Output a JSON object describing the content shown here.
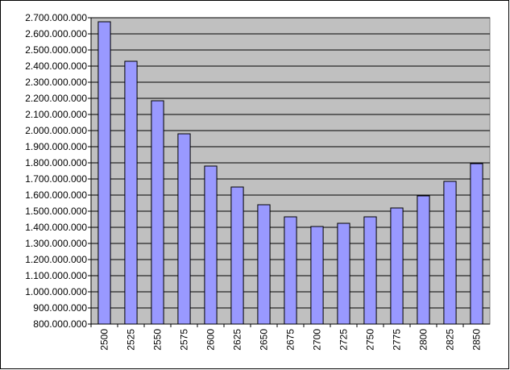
{
  "chart_data": {
    "type": "bar",
    "categories": [
      2500,
      2525,
      2550,
      2575,
      2600,
      2625,
      2650,
      2675,
      2700,
      2725,
      2750,
      2775,
      2800,
      2825,
      2850
    ],
    "values": [
      2675000000,
      2430000000,
      2185000000,
      1980000000,
      1780000000,
      1650000000,
      1540000000,
      1465000000,
      1405000000,
      1425000000,
      1465000000,
      1520000000,
      1595000000,
      1685000000,
      1795000000
    ],
    "color": "#9999ff",
    "ylim": [
      800000000,
      2700000000
    ],
    "yticks": [
      {
        "value": 800000000,
        "label": "800.000.000"
      },
      {
        "value": 900000000,
        "label": "900.000.000"
      },
      {
        "value": 1000000000,
        "label": "1.000.000.000"
      },
      {
        "value": 1100000000,
        "label": "1.100.000.000"
      },
      {
        "value": 1200000000,
        "label": "1.200.000.000"
      },
      {
        "value": 1300000000,
        "label": "1.300.000.000"
      },
      {
        "value": 1400000000,
        "label": "1.400.000.000"
      },
      {
        "value": 1500000000,
        "label": "1.500.000.000"
      },
      {
        "value": 1600000000,
        "label": "1.600.000.000"
      },
      {
        "value": 1700000000,
        "label": "1.700.000.000"
      },
      {
        "value": 1800000000,
        "label": "1.800.000.000"
      },
      {
        "value": 1900000000,
        "label": "1.900.000.000"
      },
      {
        "value": 2000000000,
        "label": "2.000.000.000"
      },
      {
        "value": 2100000000,
        "label": "2.100.000.000"
      },
      {
        "value": 2200000000,
        "label": "2.200.000.000"
      },
      {
        "value": 2300000000,
        "label": "2.300.000.000"
      },
      {
        "value": 2400000000,
        "label": "2.400.000.000"
      },
      {
        "value": 2500000000,
        "label": "2.500.000.000"
      },
      {
        "value": 2600000000,
        "label": "2.600.000.000"
      },
      {
        "value": 2700000000,
        "label": "2.700.000.000"
      }
    ],
    "grid": true
  }
}
